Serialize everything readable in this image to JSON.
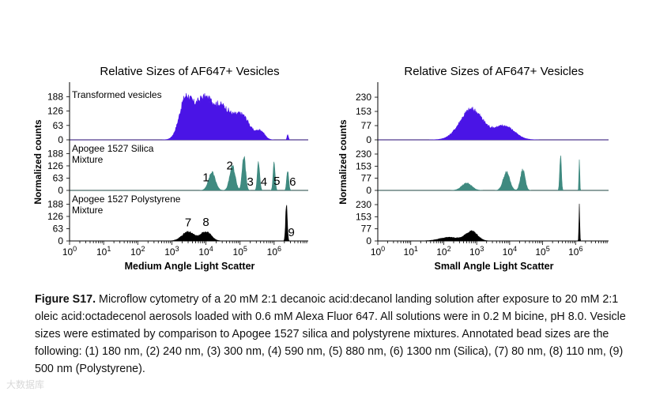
{
  "figure_title_bold": "Figure S17.",
  "caption_text": " Microflow cytometry of a 20 mM 2:1 decanoic acid:decanol landing solution after exposure to 20 mM 2:1 oleic acid:octadecenol aerosols loaded with 0.6 mM Alexa Fluor 647. All solutions were in 0.2 M bicine, pH 8.0. Vesicle sizes were estimated by comparison to Apogee 1527 silica and polystyrene mixtures. Annotated bead sizes are the following: (1) 180 nm, (2) 240 nm, (3) 300 nm, (4) 590 nm, (5) 880 nm, (6) 1300 nm (Silica), (7) 80 nm, (8) 110 nm, (9) 500 nm (Polystyrene).",
  "watermark": "大数据库",
  "colors": {
    "vesicles": "#4a14e6",
    "silica": "#3f8a80",
    "polystyrene": "#000000"
  },
  "chart_data": [
    {
      "type": "area",
      "title": "Relative Sizes of AF647+ Vesicles",
      "xlabel": "Medium Angle Light Scatter",
      "ylabel": "Normalized counts",
      "xscale": "log",
      "xlim": [
        1,
        10000000
      ],
      "x_ticks": [
        "10^0",
        "10^1",
        "10^2",
        "10^3",
        "10^4",
        "10^5",
        "10^6"
      ],
      "panels": [
        {
          "label": "Transformed vesicles",
          "color": "vesicles",
          "y_ticks": [
            "188",
            "126",
            "63",
            "0"
          ],
          "ylim": [
            0,
            210
          ],
          "peaks": [
            {
              "x": 2500,
              "height": 185,
              "width": 0.18
            },
            {
              "x": 8000,
              "height": 180,
              "width": 0.25
            },
            {
              "x": 30000,
              "height": 150,
              "width": 0.28
            },
            {
              "x": 120000,
              "height": 105,
              "width": 0.22
            },
            {
              "x": 400000,
              "height": 40,
              "width": 0.12
            },
            {
              "x": 2500000,
              "height": 25,
              "width": 0.02
            }
          ],
          "annotations": []
        },
        {
          "label": "Apogee 1527 Silica Mixture",
          "color": "silica",
          "y_ticks": [
            "188",
            "126",
            "63",
            "0"
          ],
          "ylim": [
            0,
            210
          ],
          "peaks": [
            {
              "x": 15000,
              "height": 100,
              "width": 0.1
            },
            {
              "x": 60000,
              "height": 135,
              "width": 0.08
            },
            {
              "x": 130000,
              "height": 190,
              "width": 0.05
            },
            {
              "x": 350000,
              "height": 160,
              "width": 0.035
            },
            {
              "x": 1000000,
              "height": 150,
              "width": 0.03
            },
            {
              "x": 2500000,
              "height": 110,
              "width": 0.03
            }
          ],
          "annotations": [
            {
              "text": "1",
              "x": 10000
            },
            {
              "text": "2",
              "x": 50000
            },
            {
              "text": "3",
              "x": 200000
            },
            {
              "text": "4",
              "x": 500000
            },
            {
              "text": "5",
              "x": 1200000
            },
            {
              "text": "6",
              "x": 3500000
            }
          ]
        },
        {
          "label": "Apogee 1527 Polystyrene Mixture",
          "color": "polystyrene",
          "y_ticks": [
            "188",
            "126",
            "63",
            "0"
          ],
          "ylim": [
            0,
            210
          ],
          "peaks": [
            {
              "x": 3000,
              "height": 50,
              "width": 0.18
            },
            {
              "x": 10000,
              "height": 52,
              "width": 0.15
            },
            {
              "x": 2300000,
              "height": 205,
              "width": 0.025
            }
          ],
          "annotations": [
            {
              "text": "7",
              "x": 3000
            },
            {
              "text": "8",
              "x": 10000
            },
            {
              "text": "9",
              "x": 3200000
            }
          ]
        }
      ]
    },
    {
      "type": "area",
      "title": "Relative Sizes of AF647+ Vesicles",
      "xlabel": "Small Angle Light Scatter",
      "ylabel": "Normalized counts",
      "xscale": "log",
      "xlim": [
        1,
        10000000
      ],
      "x_ticks": [
        "10^0",
        "10^1",
        "10^2",
        "10^3",
        "10^4",
        "10^5",
        "10^6"
      ],
      "panels": [
        {
          "label": "",
          "color": "vesicles",
          "y_ticks": [
            "230",
            "153",
            "77",
            "0"
          ],
          "ylim": [
            0,
            260
          ],
          "peaks": [
            {
              "x": 700,
              "height": 180,
              "width": 0.35
            },
            {
              "x": 7000,
              "height": 80,
              "width": 0.3
            }
          ],
          "annotations": []
        },
        {
          "label": "",
          "color": "silica",
          "y_ticks": [
            "230",
            "153",
            "77",
            "0"
          ],
          "ylim": [
            0,
            260
          ],
          "peaks": [
            {
              "x": 500,
              "height": 50,
              "width": 0.15
            },
            {
              "x": 8000,
              "height": 125,
              "width": 0.1
            },
            {
              "x": 25000,
              "height": 145,
              "width": 0.07
            },
            {
              "x": 350000,
              "height": 235,
              "width": 0.025
            },
            {
              "x": 1300000,
              "height": 230,
              "width": 0.012
            }
          ],
          "annotations": []
        },
        {
          "label": "",
          "color": "polystyrene",
          "y_ticks": [
            "230",
            "153",
            "77",
            "0"
          ],
          "ylim": [
            0,
            260
          ],
          "peaks": [
            {
              "x": 150,
              "height": 25,
              "width": 0.3
            },
            {
              "x": 700,
              "height": 65,
              "width": 0.18
            },
            {
              "x": 1300000,
              "height": 255,
              "width": 0.012
            }
          ],
          "annotations": []
        }
      ]
    }
  ]
}
